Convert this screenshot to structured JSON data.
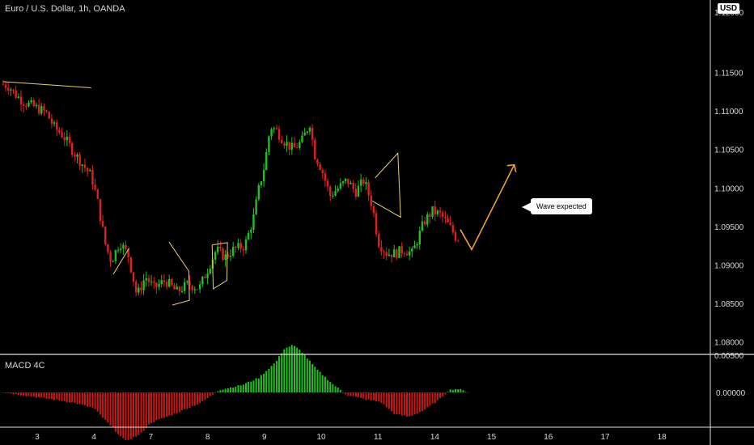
{
  "header": {
    "title": "Euro / U.S. Dollar, 1h, OANDA",
    "currency": "USD"
  },
  "annotation": {
    "label": "Wave expected"
  },
  "macd": {
    "title": "MACD 4C",
    "y_ticks": [
      "0.00500",
      "0.00000"
    ],
    "colors": {
      "positive": "#22c022",
      "negative": "#c81818"
    }
  },
  "colors": {
    "background": "#000000",
    "bull": "#22c022",
    "bear": "#e02020",
    "pattern": "#e8d070",
    "arrow": "#f0a030",
    "axis_text": "#d9d9d9",
    "separator": "#e0e0e0"
  },
  "chart_data": {
    "type": "candlestick",
    "symbol": "EURUSD",
    "interval": "1h",
    "source": "OANDA",
    "ylim": [
      1.0785,
      1.1225
    ],
    "y_ticks": [
      {
        "value": 1.115,
        "label": "1.11500"
      },
      {
        "value": 1.11,
        "label": "1.11000"
      },
      {
        "value": 1.105,
        "label": "1.10500"
      },
      {
        "value": 1.1,
        "label": "1.10000"
      },
      {
        "value": 1.095,
        "label": "1.09500"
      },
      {
        "value": 1.09,
        "label": "1.09000"
      },
      {
        "value": 1.085,
        "label": "1.08500"
      },
      {
        "value": 1.08,
        "label": "1.08000"
      }
    ],
    "partial_y_ticks": [
      "1.12000",
      "1.08500"
    ],
    "x_ticks": [
      {
        "label": "3",
        "day": 0
      },
      {
        "label": "4",
        "day": 1
      },
      {
        "label": "7",
        "day": 2
      },
      {
        "label": "8",
        "day": 3
      },
      {
        "label": "9",
        "day": 4
      },
      {
        "label": "10",
        "day": 5
      },
      {
        "label": "11",
        "day": 6
      },
      {
        "label": "14",
        "day": 7
      },
      {
        "label": "15",
        "day": 8
      },
      {
        "label": "16",
        "day": 9
      },
      {
        "label": "17",
        "day": 10
      },
      {
        "label": "18",
        "day": 11
      }
    ],
    "price_path": [
      [
        -0.6,
        1.1135
      ],
      [
        -0.45,
        1.1132
      ],
      [
        -0.35,
        1.1122
      ],
      [
        -0.2,
        1.1112
      ],
      [
        0.0,
        1.1105
      ],
      [
        0.2,
        1.1098
      ],
      [
        0.35,
        1.1078
      ],
      [
        0.5,
        1.1068
      ],
      [
        0.7,
        1.1045
      ],
      [
        0.85,
        1.103
      ],
      [
        1.0,
        1.1015
      ],
      [
        1.1,
        1.0985
      ],
      [
        1.25,
        1.0925
      ],
      [
        1.35,
        1.0905
      ],
      [
        1.5,
        1.093
      ],
      [
        1.65,
        1.0912
      ],
      [
        1.8,
        1.086
      ],
      [
        1.95,
        1.0885
      ],
      [
        2.1,
        1.087
      ],
      [
        2.3,
        1.088
      ],
      [
        2.5,
        1.0865
      ],
      [
        2.7,
        1.0875
      ],
      [
        2.9,
        1.087
      ],
      [
        3.05,
        1.0895
      ],
      [
        3.2,
        1.092
      ],
      [
        3.35,
        1.091
      ],
      [
        3.5,
        1.092
      ],
      [
        3.7,
        1.0925
      ],
      [
        3.85,
        1.096
      ],
      [
        3.95,
        1.1
      ],
      [
        4.05,
        1.103
      ],
      [
        4.15,
        1.108
      ],
      [
        4.25,
        1.1075
      ],
      [
        4.4,
        1.106
      ],
      [
        4.55,
        1.105
      ],
      [
        4.7,
        1.106
      ],
      [
        4.85,
        1.1085
      ],
      [
        4.92,
        1.1045
      ],
      [
        5.05,
        1.1025
      ],
      [
        5.2,
        1.099
      ],
      [
        5.35,
        1.1
      ],
      [
        5.5,
        1.101
      ],
      [
        5.65,
        1.0995
      ],
      [
        5.8,
        1.101
      ],
      [
        5.95,
        1.0975
      ],
      [
        6.05,
        1.093
      ],
      [
        6.2,
        1.0915
      ],
      [
        6.35,
        1.0915
      ],
      [
        6.5,
        1.092
      ],
      [
        6.65,
        1.0915
      ],
      [
        6.75,
        1.0935
      ],
      [
        6.85,
        1.0955
      ],
      [
        7.0,
        1.097
      ],
      [
        7.15,
        1.0965
      ],
      [
        7.25,
        1.0955
      ],
      [
        7.35,
        1.0945
      ],
      [
        7.42,
        1.0935
      ]
    ],
    "series": [
      {
        "name": "MACD 4C",
        "type": "histogram",
        "points": [
          [
            -0.6,
            0.0
          ],
          [
            0.0,
            -0.0004
          ],
          [
            0.6,
            -0.0008
          ],
          [
            1.0,
            -0.0013
          ],
          [
            1.3,
            -0.0028
          ],
          [
            1.55,
            -0.004
          ],
          [
            1.8,
            -0.0035
          ],
          [
            2.0,
            -0.0025
          ],
          [
            2.4,
            -0.0018
          ],
          [
            2.9,
            -0.0008
          ],
          [
            3.2,
            0.0002
          ],
          [
            3.6,
            0.0006
          ],
          [
            3.9,
            0.0012
          ],
          [
            4.2,
            0.0025
          ],
          [
            4.35,
            0.0036
          ],
          [
            4.5,
            0.0039
          ],
          [
            4.65,
            0.0034
          ],
          [
            4.9,
            0.002
          ],
          [
            5.2,
            0.0007
          ],
          [
            5.45,
            -0.0002
          ],
          [
            5.8,
            -0.0006
          ],
          [
            6.05,
            -0.0008
          ],
          [
            6.3,
            -0.0018
          ],
          [
            6.55,
            -0.002
          ],
          [
            6.8,
            -0.0015
          ],
          [
            7.1,
            -0.0005
          ],
          [
            7.25,
            0.0002
          ],
          [
            7.4,
            0.0003
          ],
          [
            7.6,
            0.0
          ]
        ]
      }
    ]
  }
}
